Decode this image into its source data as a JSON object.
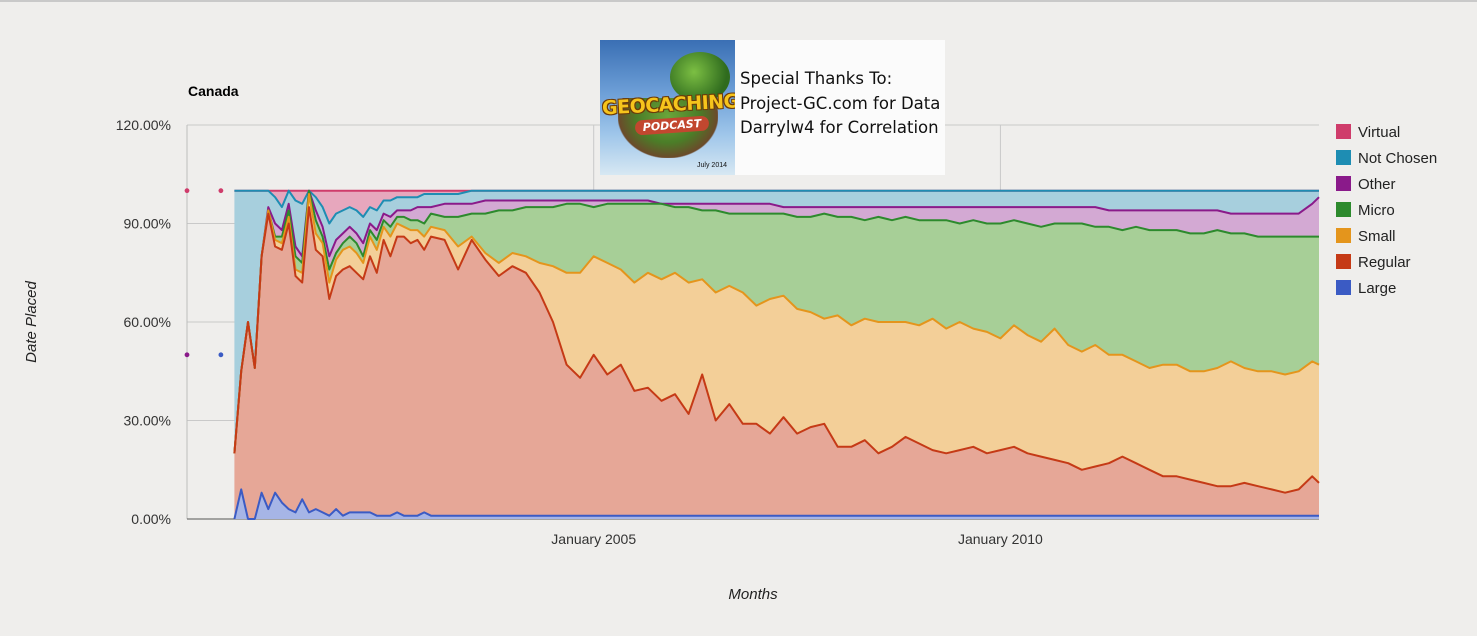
{
  "chart_data": {
    "type": "area",
    "stacked": true,
    "percent_stacked": true,
    "title": "Canada",
    "xlabel": "Months",
    "ylabel": "Date Placed",
    "ylim": [
      0,
      120
    ],
    "y_tick_values": [
      0,
      30,
      60,
      90,
      120
    ],
    "y_tick_labels": [
      "0.00%",
      "30.00%",
      "60.00%",
      "90.00%",
      "120.00%"
    ],
    "x_unit": "months since January 2000",
    "x_range": [
      0,
      167
    ],
    "x_tick_values": [
      60,
      120
    ],
    "x_tick_labels": [
      "January 2005",
      "January 2010"
    ],
    "legend_position": "right",
    "x_key": [
      7,
      8,
      9,
      10,
      11,
      12,
      13,
      14,
      15,
      16,
      17,
      18,
      19,
      20,
      21,
      22,
      23,
      24,
      25,
      26,
      27,
      28,
      29,
      30,
      31,
      32,
      33,
      34,
      35,
      36,
      38,
      40,
      42,
      44,
      46,
      48,
      50,
      52,
      54,
      56,
      58,
      60,
      62,
      64,
      66,
      68,
      70,
      72,
      74,
      76,
      78,
      80,
      82,
      84,
      86,
      88,
      90,
      92,
      94,
      96,
      98,
      100,
      102,
      104,
      106,
      108,
      110,
      112,
      114,
      116,
      118,
      120,
      122,
      124,
      126,
      128,
      130,
      132,
      134,
      136,
      138,
      140,
      142,
      144,
      146,
      148,
      150,
      152,
      154,
      156,
      158,
      160,
      162,
      164,
      166,
      167
    ],
    "series": [
      {
        "name": "Large",
        "color": "#3b5bc4",
        "fill": "#a6b5e6",
        "cumulative_top": [
          0,
          9,
          0,
          0,
          8,
          3,
          8,
          5,
          3,
          2,
          6,
          2,
          3,
          2,
          1,
          3,
          1,
          2,
          2,
          2,
          2,
          1,
          1,
          1,
          2,
          1,
          1,
          1,
          2,
          1,
          1,
          1,
          1,
          1,
          1,
          1,
          1,
          1,
          1,
          1,
          1,
          1,
          1,
          1,
          1,
          1,
          1,
          1,
          1,
          1,
          1,
          1,
          1,
          1,
          1,
          1,
          1,
          1,
          1,
          1,
          1,
          1,
          1,
          1,
          1,
          1,
          1,
          1,
          1,
          1,
          1,
          1,
          1,
          1,
          1,
          1,
          1,
          1,
          1,
          1,
          1,
          1,
          1,
          1,
          1,
          1,
          1,
          1,
          1,
          1,
          1,
          1,
          1,
          1,
          1,
          1
        ]
      },
      {
        "name": "Regular",
        "color": "#c53a16",
        "fill": "#e6a797",
        "cumulative_top": [
          20,
          45,
          60,
          46,
          80,
          93,
          83,
          82,
          90,
          74,
          72,
          95,
          82,
          80,
          67,
          74,
          76,
          77,
          75,
          73,
          80,
          75,
          85,
          80,
          86,
          86,
          84,
          85,
          82,
          86,
          85,
          76,
          85,
          79,
          74,
          77,
          75,
          69,
          60,
          47,
          43,
          50,
          44,
          47,
          39,
          40,
          36,
          38,
          32,
          44,
          30,
          35,
          29,
          29,
          26,
          31,
          26,
          28,
          29,
          22,
          22,
          24,
          20,
          22,
          25,
          23,
          21,
          20,
          21,
          22,
          20,
          21,
          22,
          20,
          19,
          18,
          17,
          15,
          16,
          17,
          19,
          17,
          15,
          13,
          13,
          12,
          11,
          10,
          10,
          11,
          10,
          9,
          8,
          9,
          13,
          11
        ]
      },
      {
        "name": "Small",
        "color": "#e4951c",
        "fill": "#f3cf98",
        "cumulative_top": [
          20,
          45,
          60,
          46,
          80,
          94,
          85,
          84,
          92,
          76,
          75,
          99,
          87,
          84,
          72,
          79,
          82,
          83,
          81,
          78,
          86,
          82,
          89,
          86,
          90,
          89,
          88,
          88,
          86,
          89,
          88,
          83,
          86,
          81,
          78,
          81,
          80,
          78,
          77,
          75,
          75,
          80,
          78,
          76,
          72,
          75,
          73,
          75,
          72,
          73,
          69,
          71,
          69,
          65,
          67,
          68,
          64,
          63,
          61,
          62,
          59,
          61,
          60,
          60,
          60,
          59,
          61,
          58,
          60,
          58,
          57,
          55,
          59,
          56,
          54,
          58,
          53,
          51,
          53,
          50,
          50,
          48,
          46,
          47,
          47,
          45,
          45,
          46,
          48,
          46,
          45,
          45,
          44,
          45,
          48,
          47
        ]
      },
      {
        "name": "Micro",
        "color": "#2d8a2d",
        "fill": "#a7cf97",
        "cumulative_top": [
          20,
          45,
          60,
          46,
          80,
          94,
          86,
          86,
          94,
          80,
          78,
          100,
          91,
          86,
          76,
          81,
          84,
          86,
          84,
          80,
          88,
          85,
          91,
          89,
          92,
          92,
          91,
          91,
          90,
          93,
          92,
          92,
          93,
          93,
          94,
          94,
          95,
          95,
          95,
          96,
          96,
          95,
          96,
          96,
          96,
          96,
          96,
          95,
          95,
          94,
          94,
          93,
          93,
          93,
          93,
          93,
          92,
          92,
          93,
          92,
          92,
          91,
          92,
          91,
          92,
          91,
          91,
          91,
          90,
          91,
          90,
          90,
          91,
          90,
          89,
          90,
          90,
          90,
          89,
          89,
          88,
          89,
          88,
          88,
          88,
          87,
          87,
          88,
          87,
          87,
          86,
          86,
          86,
          86,
          86,
          86
        ]
      },
      {
        "name": "Other",
        "color": "#8a1a8a",
        "fill": "#d3a9d3",
        "cumulative_top": [
          20,
          45,
          60,
          46,
          80,
          95,
          90,
          88,
          96,
          83,
          80,
          100,
          94,
          89,
          80,
          85,
          87,
          89,
          87,
          84,
          90,
          88,
          93,
          92,
          94,
          94,
          94,
          95,
          95,
          95,
          96,
          96,
          96,
          97,
          97,
          97,
          97,
          97,
          97,
          97,
          97,
          97,
          97,
          97,
          97,
          97,
          96,
          96,
          96,
          96,
          96,
          96,
          96,
          96,
          96,
          95,
          95,
          95,
          95,
          95,
          95,
          95,
          95,
          95,
          95,
          95,
          95,
          95,
          95,
          95,
          95,
          95,
          95,
          95,
          95,
          95,
          95,
          95,
          95,
          94,
          94,
          94,
          94,
          94,
          94,
          94,
          94,
          94,
          93,
          93,
          93,
          93,
          93,
          93,
          96,
          98
        ]
      },
      {
        "name": "Not Chosen",
        "color": "#1e8db3",
        "fill": "#a7cfdd",
        "cumulative_top": [
          100,
          100,
          100,
          100,
          100,
          100,
          98,
          95,
          100,
          97,
          96,
          100,
          98,
          95,
          90,
          93,
          94,
          95,
          94,
          92,
          95,
          94,
          97,
          97,
          98,
          98,
          98,
          98,
          99,
          99,
          99,
          99,
          100,
          100,
          100,
          100,
          100,
          100,
          100,
          100,
          100,
          100,
          100,
          100,
          100,
          100,
          100,
          100,
          100,
          100,
          100,
          100,
          100,
          100,
          100,
          100,
          100,
          100,
          100,
          100,
          100,
          100,
          100,
          100,
          100,
          100,
          100,
          100,
          100,
          100,
          100,
          100,
          100,
          100,
          100,
          100,
          100,
          100,
          100,
          100,
          100,
          100,
          100,
          100,
          100,
          100,
          100,
          100,
          100,
          100,
          100,
          100,
          100,
          100,
          100,
          100
        ]
      },
      {
        "name": "Virtual",
        "color": "#cf3c6b",
        "fill": "#e7a7bd",
        "cumulative_top": [
          100,
          100,
          100,
          100,
          100,
          100,
          100,
          100,
          100,
          100,
          100,
          100,
          100,
          100,
          100,
          100,
          100,
          100,
          100,
          100,
          100,
          100,
          100,
          100,
          100,
          100,
          100,
          100,
          100,
          100,
          100,
          100,
          100,
          100,
          100,
          100,
          100,
          100,
          100,
          100,
          100,
          100,
          100,
          100,
          100,
          100,
          100,
          100,
          100,
          100,
          100,
          100,
          100,
          100,
          100,
          100,
          100,
          100,
          100,
          100,
          100,
          100,
          100,
          100,
          100,
          100,
          100,
          100,
          100,
          100,
          100,
          100,
          100,
          100,
          100,
          100,
          100,
          100,
          100,
          100,
          100,
          100,
          100,
          100,
          100,
          100,
          100,
          100,
          100,
          100,
          100,
          100,
          100,
          100,
          100,
          100
        ]
      }
    ],
    "isolated_points": [
      {
        "x": 0,
        "y": 100,
        "series": "Virtual"
      },
      {
        "x": 0,
        "y": 50,
        "series": "Other"
      },
      {
        "x": 5,
        "y": 100,
        "series": "Virtual"
      },
      {
        "x": 5,
        "y": 50,
        "series": "Large"
      }
    ],
    "legend_order": [
      "Virtual",
      "Not Chosen",
      "Other",
      "Micro",
      "Small",
      "Regular",
      "Large"
    ]
  },
  "overlay": {
    "logo_text": "GEOCACHING",
    "logo_subtext": "PODCAST",
    "logo_date": "July 2014",
    "thanks_lines": [
      "Special Thanks To:",
      "Project-GC.com for Data",
      "Darrylw4 for Correlation"
    ]
  }
}
